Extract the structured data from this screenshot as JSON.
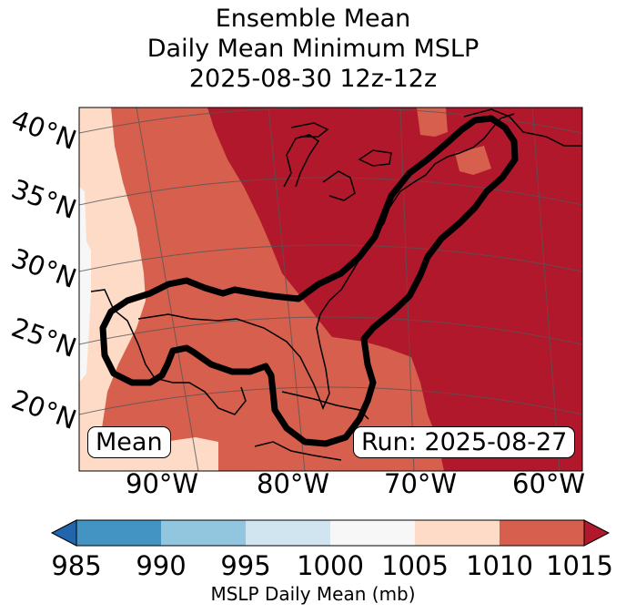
{
  "title": {
    "line1": "Ensemble Mean",
    "line2": "Daily Mean Minimum MSLP",
    "line3": "2025-08-30 12z-12z"
  },
  "map": {
    "lat_labels": [
      "40°N",
      "35°N",
      "30°N",
      "25°N",
      "20°N"
    ],
    "lon_labels": [
      "90°W",
      "80°W",
      "70°W",
      "60°W"
    ],
    "left_badge": "Mean",
    "right_badge": "Run: 2025-08-27"
  },
  "colorbar": {
    "ticks": [
      "985",
      "990",
      "995",
      "1000",
      "1005",
      "1010",
      "1015"
    ],
    "label": "MSLP Daily Mean (mb)",
    "colors": {
      "under": "#2166ac",
      "985_990": "#4393c3",
      "990_995": "#92c5de",
      "995_1000": "#d1e5f0",
      "1000_1005": "#f7f7f7",
      "1005_1010": "#fddbc7",
      "1010_1015": "#d6604d",
      "over": "#b2182b"
    }
  }
}
